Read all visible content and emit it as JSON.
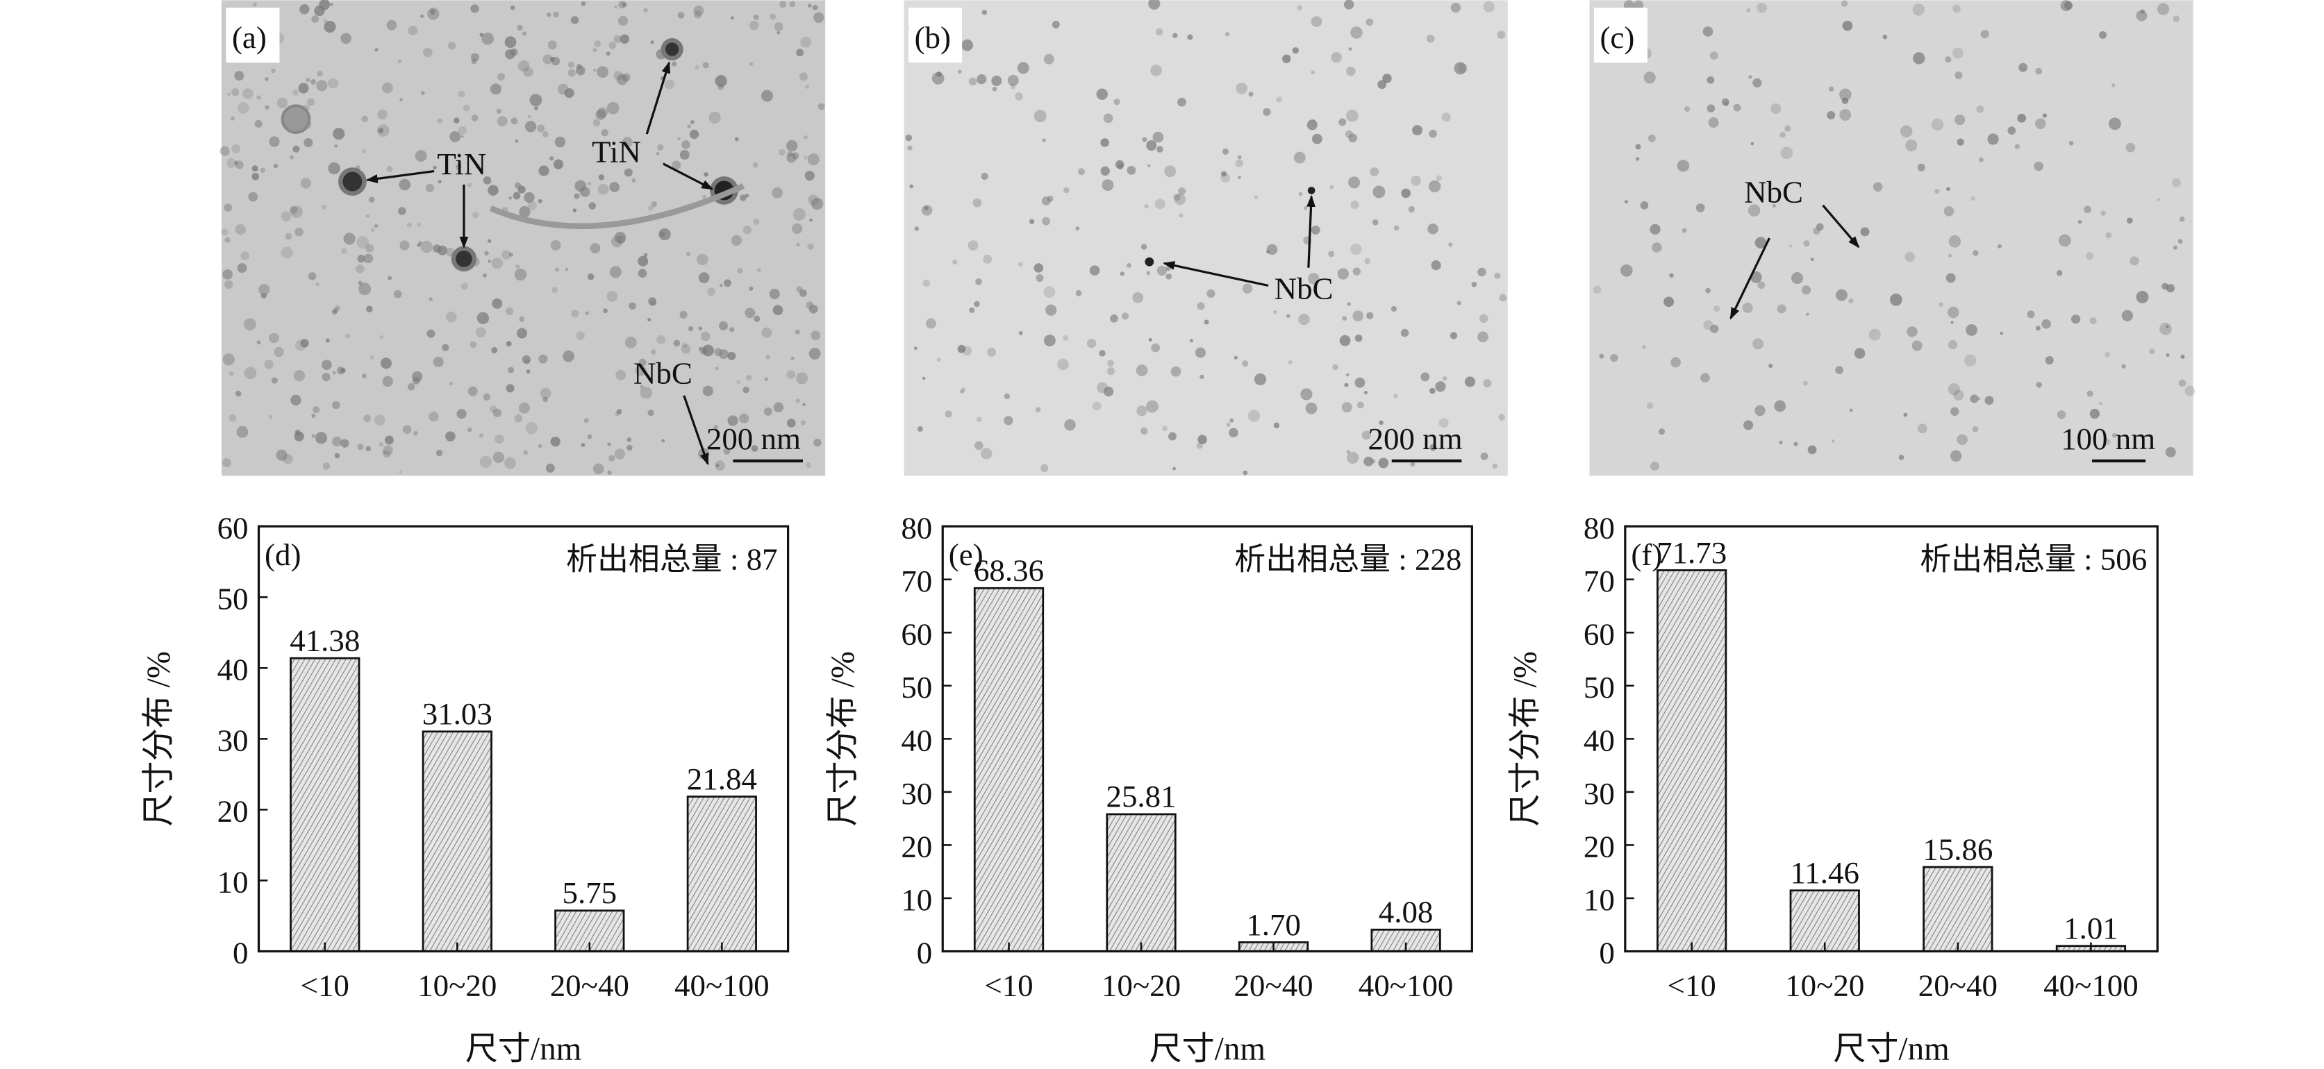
{
  "micrographs": [
    {
      "panel": "(a)",
      "labels": [
        "TiN",
        "TiN",
        "NbC"
      ],
      "scale_bar": "200 nm"
    },
    {
      "panel": "(b)",
      "labels": [
        "NbC"
      ],
      "scale_bar": "200 nm"
    },
    {
      "panel": "(c)",
      "labels": [
        "NbC"
      ],
      "scale_bar": "100 nm"
    }
  ],
  "colors": {
    "bar_fill": "#dcdcdc",
    "hatch": "#555555",
    "axis": "#111111",
    "micrograph_bg": "#c9c9c9"
  },
  "chart_data": [
    {
      "type": "bar",
      "panel": "(d)",
      "annotation": "析出相总量 : 87",
      "categories": [
        "<10",
        "10~20",
        "20~40",
        "40~100"
      ],
      "values": [
        41.38,
        31.03,
        5.75,
        21.84
      ],
      "value_labels": [
        "41.38",
        "31.03",
        "5.75",
        "21.84"
      ],
      "xlabel": "尺寸/nm",
      "ylabel": "尺寸分布 /%",
      "ylim": [
        0,
        60
      ],
      "yticks": [
        0,
        10,
        20,
        30,
        40,
        50,
        60
      ],
      "grid": false
    },
    {
      "type": "bar",
      "panel": "(e)",
      "annotation": "析出相总量 : 228",
      "categories": [
        "<10",
        "10~20",
        "20~40",
        "40~100"
      ],
      "values": [
        68.36,
        25.81,
        1.7,
        4.08
      ],
      "value_labels": [
        "68.36",
        "25.81",
        "1.70",
        "4.08"
      ],
      "xlabel": "尺寸/nm",
      "ylabel": "尺寸分布 /%",
      "ylim": [
        0,
        80
      ],
      "yticks": [
        0,
        10,
        20,
        30,
        40,
        50,
        60,
        70,
        80
      ],
      "grid": false
    },
    {
      "type": "bar",
      "panel": "(f)",
      "annotation": "析出相总量 : 506",
      "categories": [
        "<10",
        "10~20",
        "20~40",
        "40~100"
      ],
      "values": [
        71.73,
        11.46,
        15.86,
        1.01
      ],
      "value_labels": [
        "71.73",
        "11.46",
        "15.86",
        "1.01"
      ],
      "xlabel": "尺寸/nm",
      "ylabel": "尺寸分布 /%",
      "ylim": [
        0,
        80
      ],
      "yticks": [
        0,
        10,
        20,
        30,
        40,
        50,
        60,
        70,
        80
      ],
      "grid": false
    }
  ]
}
